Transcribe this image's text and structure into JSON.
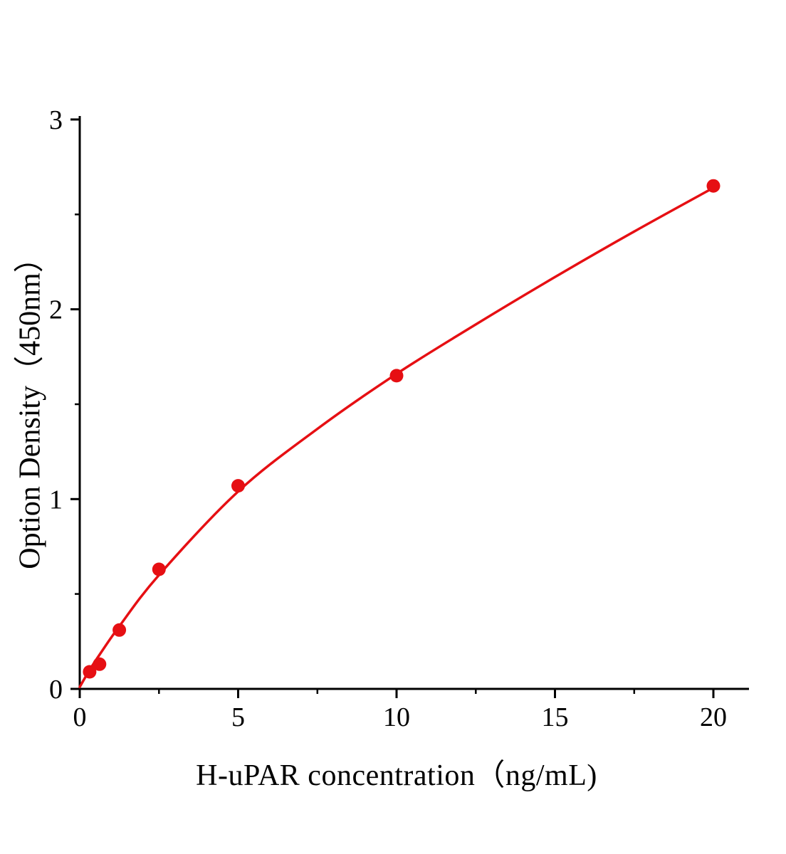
{
  "figure_title": "",
  "chart_data": {
    "type": "scatter",
    "title": "",
    "xlabel": "H-uPAR concentration（ng/mL)",
    "ylabel": "Option Density（450nm）",
    "xlim": [
      0,
      21
    ],
    "ylim": [
      0,
      3
    ],
    "grid": false,
    "legend": null,
    "x_ticks": [
      0,
      5,
      10,
      15,
      20
    ],
    "x_minor_ticks": [
      2.5,
      7.5,
      12.5,
      17.5
    ],
    "y_ticks": [
      0,
      1,
      2,
      3
    ],
    "y_minor_ticks": [
      0.5,
      1.5,
      2.5
    ],
    "series": [
      {
        "name": "standard-points",
        "kind": "scatter",
        "color": "#e60f13",
        "marker_size": 9.5,
        "points": [
          [
            0.3125,
            0.09
          ],
          [
            0.625,
            0.13
          ],
          [
            1.25,
            0.31
          ],
          [
            2.5,
            0.63
          ],
          [
            5,
            1.07
          ],
          [
            10,
            1.65
          ],
          [
            20,
            2.65
          ]
        ]
      },
      {
        "name": "fit-curve",
        "kind": "line",
        "color": "#e60f13",
        "line_width": 3.5,
        "points": [
          [
            0,
            0.01
          ],
          [
            0.3125,
            0.1
          ],
          [
            0.625,
            0.18
          ],
          [
            1.25,
            0.33
          ],
          [
            2.5,
            0.6
          ],
          [
            5,
            1.04
          ],
          [
            7.5,
            1.37
          ],
          [
            10,
            1.66
          ],
          [
            12.5,
            1.92
          ],
          [
            15,
            2.17
          ],
          [
            17.5,
            2.41
          ],
          [
            20,
            2.64
          ]
        ]
      }
    ],
    "colors": {
      "series": "#e60f13",
      "axis": "#000000",
      "tick_label": "#000000"
    }
  }
}
